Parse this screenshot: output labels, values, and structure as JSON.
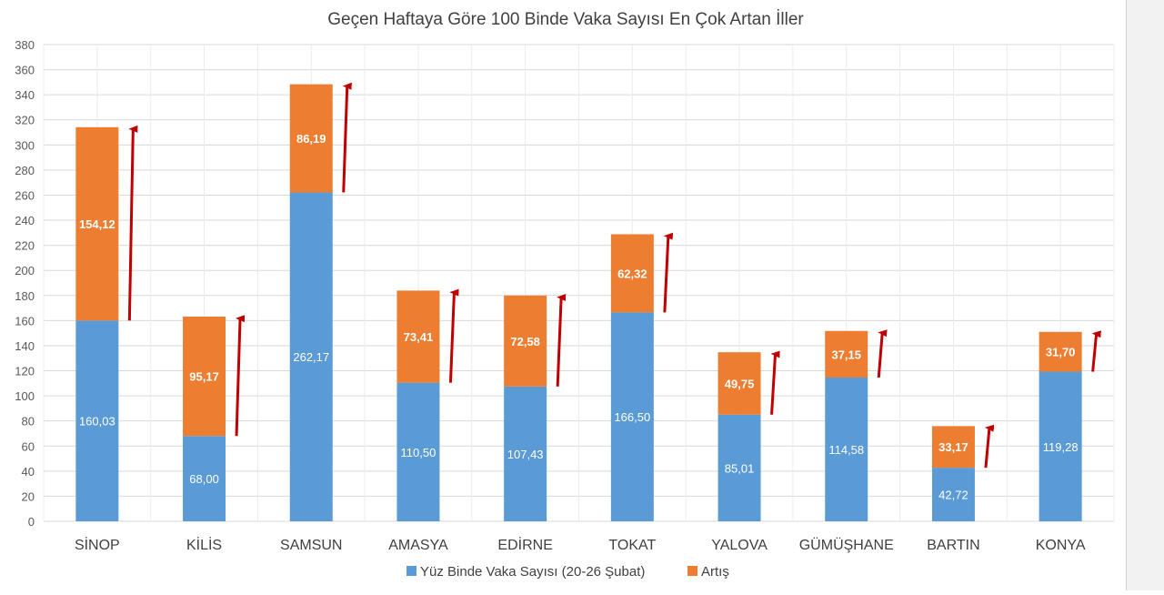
{
  "chart_data": {
    "type": "bar",
    "stacked": true,
    "title": "Geçen Haftaya Göre 100 Binde Vaka Sayısı En Çok Artan İller",
    "xlabel": "",
    "ylabel": "",
    "ylim": [
      0,
      380
    ],
    "yticks": [
      0,
      20,
      40,
      60,
      80,
      100,
      120,
      140,
      160,
      180,
      200,
      220,
      240,
      260,
      280,
      300,
      320,
      340,
      360,
      380
    ],
    "grid": true,
    "legend_position": "bottom",
    "categories": [
      "SİNOP",
      "KİLİS",
      "SAMSUN",
      "AMASYA",
      "EDİRNE",
      "TOKAT",
      "YALOVA",
      "GÜMÜŞHANE",
      "BARTIN",
      "KONYA"
    ],
    "series": [
      {
        "name": "Yüz Binde Vaka Sayısı (20-26 Şubat)",
        "color": "#5b9bd5",
        "values": [
          160.03,
          68.0,
          262.17,
          110.5,
          107.43,
          166.5,
          85.01,
          114.58,
          42.72,
          119.28
        ],
        "labels": [
          "160,03",
          "68,00",
          "262,17",
          "110,50",
          "107,43",
          "166,50",
          "85,01",
          "114,58",
          "42,72",
          "119,28"
        ]
      },
      {
        "name": "Artış",
        "color": "#ed7d31",
        "values": [
          154.12,
          95.17,
          86.19,
          73.41,
          72.58,
          62.32,
          49.75,
          37.15,
          33.17,
          31.7
        ],
        "labels": [
          "154,12",
          "95,17",
          "86,19",
          "73,41",
          "72,58",
          "62,32",
          "49,75",
          "37,15",
          "33,17",
          "31,70"
        ]
      }
    ],
    "annotation_arrow_color": "#c00000"
  }
}
